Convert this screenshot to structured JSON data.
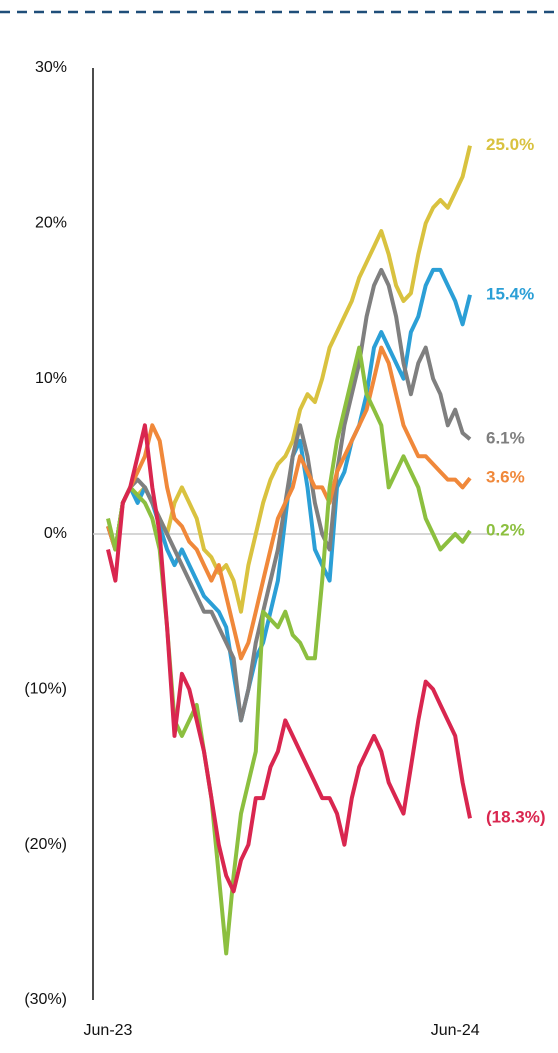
{
  "chart_data": {
    "type": "line",
    "categories": [
      "Jun-23",
      null,
      null,
      null,
      null,
      null,
      null,
      null,
      null,
      null,
      null,
      null,
      null,
      null,
      null,
      null,
      null,
      null,
      null,
      null,
      null,
      null,
      null,
      null,
      null,
      null,
      null,
      null,
      null,
      null,
      null,
      null,
      null,
      null,
      null,
      null,
      null,
      null,
      null,
      null,
      null,
      null,
      null,
      null,
      null,
      null,
      null,
      "Jun-24",
      null,
      null
    ],
    "series": [
      {
        "color": "#d9c23f",
        "end_label": "25.0%",
        "values": [
          0.5,
          -1,
          2,
          3,
          2.5,
          3,
          2,
          1,
          0,
          2,
          3,
          2,
          1,
          -1,
          -1.5,
          -2.5,
          -2,
          -3,
          -5,
          -2,
          0,
          2,
          3.5,
          4.5,
          5,
          6,
          8,
          9,
          8.5,
          10,
          12,
          13,
          14,
          15,
          16.5,
          17.5,
          18.5,
          19.5,
          18,
          16,
          15,
          15.5,
          18,
          20,
          21,
          21.5,
          21,
          22,
          23,
          25.0
        ]
      },
      {
        "color": "#2b9fd6",
        "end_label": "15.4%",
        "values": [
          0.5,
          -1,
          2,
          3,
          2,
          3,
          2,
          0.5,
          -1,
          -2,
          -1,
          -2,
          -3,
          -4,
          -4.5,
          -5,
          -6,
          -9,
          -12,
          -10,
          -8,
          -7,
          -5,
          -3,
          1,
          5,
          6,
          3,
          -1,
          -2,
          -3,
          3,
          4,
          6,
          7,
          9,
          12,
          13,
          12,
          11,
          10,
          13,
          14,
          16,
          17,
          17,
          16,
          15,
          13.5,
          15.4
        ]
      },
      {
        "color": "#7f7f7f",
        "end_label": "6.1%",
        "values": [
          0.5,
          -1,
          2,
          3,
          3.5,
          3,
          2,
          1,
          0,
          -1,
          -2,
          -3,
          -4,
          -5,
          -5,
          -6,
          -7,
          -8,
          -12,
          -10,
          -7,
          -5,
          -3,
          -1,
          2,
          5,
          7,
          5,
          2,
          0,
          -1,
          4,
          7,
          9,
          11,
          14,
          16,
          17,
          16,
          14,
          11,
          9,
          11,
          12,
          10,
          9,
          7,
          8,
          6.5,
          6.1
        ]
      },
      {
        "color": "#f0883a",
        "end_label": "3.6%",
        "values": [
          0.5,
          -1,
          2,
          3,
          4,
          5,
          7,
          6,
          3,
          1,
          0.5,
          -0.5,
          -1,
          -2,
          -3,
          -2,
          -4,
          -6,
          -8,
          -7,
          -5,
          -3,
          -1,
          1,
          2,
          3,
          5,
          4,
          3,
          3,
          2,
          4,
          5,
          6,
          7,
          8,
          10,
          12,
          11,
          9,
          7,
          6,
          5,
          5,
          4.5,
          4,
          3.5,
          3.5,
          3,
          3.6
        ]
      },
      {
        "color": "#8cbf3f",
        "end_label": "0.2%",
        "values": [
          1,
          -1,
          2,
          3,
          2.5,
          2,
          1,
          -1,
          -6,
          -12,
          -13,
          -12,
          -11,
          -14,
          -17,
          -22,
          -27,
          -22,
          -18,
          -16,
          -14,
          -5,
          -5.5,
          -6,
          -5,
          -6.5,
          -7,
          -8,
          -8,
          -3,
          3,
          6,
          8,
          10,
          12,
          9,
          8,
          7,
          3,
          4,
          5,
          4,
          3,
          1,
          0,
          -1,
          -0.5,
          0,
          -0.5,
          0.2
        ]
      },
      {
        "color": "#d9264f",
        "end_label": "(18.3%)",
        "values": [
          -1,
          -3,
          2,
          3,
          5,
          7,
          3,
          0,
          -6,
          -13,
          -9,
          -10,
          -12,
          -14,
          -17,
          -20,
          -22,
          -23,
          -21,
          -20,
          -17,
          -17,
          -15,
          -14,
          -12,
          -13,
          -14,
          -15,
          -16,
          -17,
          -17,
          -18,
          -20,
          -17,
          -15,
          -14,
          -13,
          -14,
          -16,
          -17,
          -18,
          -15,
          -12,
          -9.5,
          -10,
          -11,
          -12,
          -13,
          -16,
          -18.3
        ]
      }
    ],
    "ylim": [
      -30,
      30
    ],
    "yticks": [
      {
        "value": -30,
        "label": "(30%)"
      },
      {
        "value": -20,
        "label": "(20%)"
      },
      {
        "value": -10,
        "label": "(10%)"
      },
      {
        "value": 0,
        "label": "0%"
      },
      {
        "value": 10,
        "label": "10%"
      },
      {
        "value": 20,
        "label": "20%"
      },
      {
        "value": 30,
        "label": "30%"
      }
    ],
    "zero_line": true
  }
}
